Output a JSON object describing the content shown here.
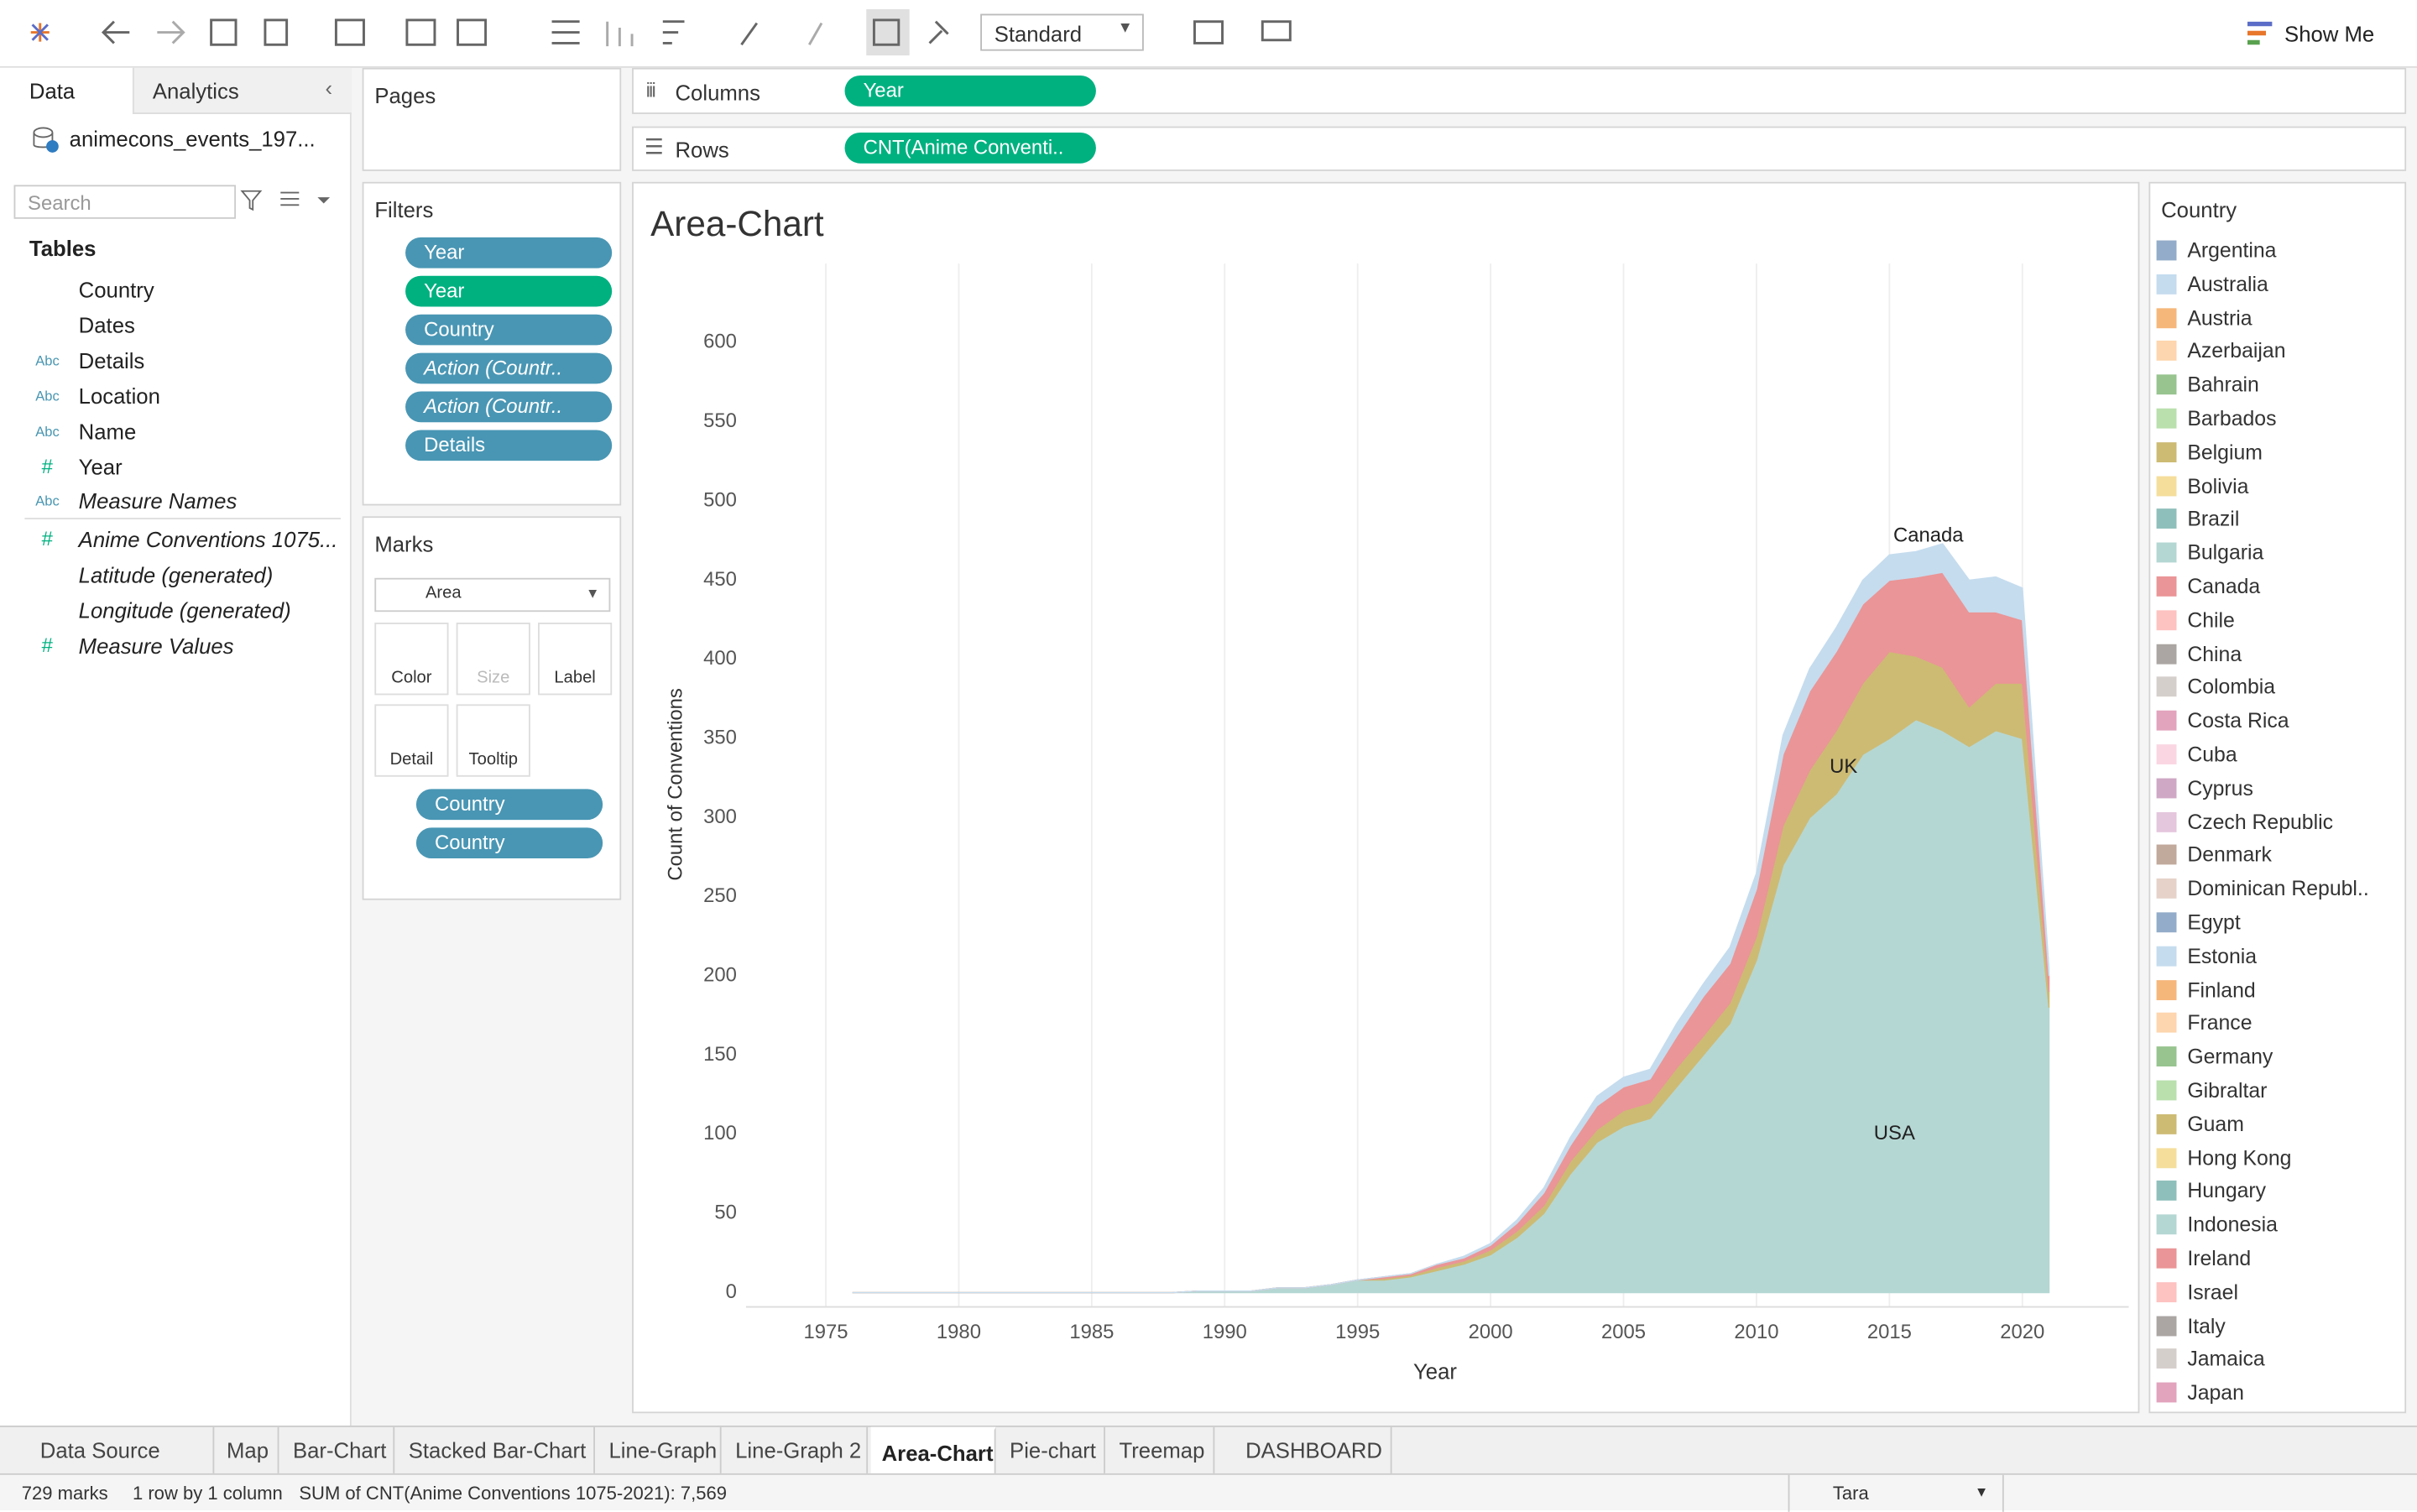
{
  "toolbar": {
    "fit_dropdown": "Standard",
    "show_me": "Show Me"
  },
  "data_pane": {
    "tabs": [
      "Data",
      "Analytics"
    ],
    "datasource": "animecons_events_197...",
    "search_placeholder": "Search",
    "tables_header": "Tables",
    "fields": [
      {
        "icon": "globe",
        "color": "#4996b2",
        "name": "Country"
      },
      {
        "icon": "calendar",
        "color": "#4996b2",
        "name": "Dates"
      },
      {
        "icon": "Abc",
        "color": "#4996b2",
        "name": "Details"
      },
      {
        "icon": "Abc",
        "color": "#4996b2",
        "name": "Location"
      },
      {
        "icon": "Abc",
        "color": "#4996b2",
        "name": "Name"
      },
      {
        "icon": "#",
        "color": "#00b180",
        "name": "Year"
      },
      {
        "icon": "Abc",
        "color": "#4996b2",
        "name": "Measure Names",
        "italic": true
      },
      {
        "icon": "#",
        "color": "#00b180",
        "name": "Anime Conventions 1075...",
        "italic": true
      },
      {
        "icon": "globe",
        "color": "#00b180",
        "name": "Latitude (generated)",
        "italic": true
      },
      {
        "icon": "globe",
        "color": "#00b180",
        "name": "Longitude (generated)",
        "italic": true
      },
      {
        "icon": "#",
        "color": "#00b180",
        "name": "Measure Values",
        "italic": true
      }
    ]
  },
  "pages_shelf": "Pages",
  "columns_shelf": {
    "label": "Columns",
    "pill": "Year"
  },
  "rows_shelf": {
    "label": "Rows",
    "pill": "CNT(Anime Conventi.."
  },
  "filters": {
    "title": "Filters",
    "pills": [
      {
        "label": "Year",
        "color": "#4996b4"
      },
      {
        "label": "Year",
        "color": "#00b180"
      },
      {
        "label": "Country",
        "color": "#4996b4"
      },
      {
        "label": "Action (Countr..",
        "color": "#4996b4",
        "italic": true
      },
      {
        "label": "Action (Countr..",
        "color": "#4996b4",
        "italic": true
      },
      {
        "label": "Details",
        "color": "#4996b4"
      }
    ]
  },
  "marks": {
    "title": "Marks",
    "mark_type": "Area",
    "buttons": [
      "Color",
      "Size",
      "Label",
      "Detail",
      "Tooltip"
    ],
    "pills": [
      "Country",
      "Country"
    ]
  },
  "chart_data": {
    "type": "area",
    "title": "Area-Chart",
    "x_label": "Year",
    "y_label": "Count of Conventions",
    "x": [
      1976,
      1977,
      1978,
      1979,
      1980,
      1981,
      1982,
      1983,
      1984,
      1985,
      1986,
      1987,
      1988,
      1989,
      1990,
      1991,
      1992,
      1993,
      1994,
      1995,
      1996,
      1997,
      1998,
      1999,
      2000,
      2001,
      2002,
      2003,
      2004,
      2005,
      2006,
      2007,
      2008,
      2009,
      2010,
      2011,
      2012,
      2013,
      2014,
      2015,
      2016,
      2017,
      2018,
      2019,
      2020,
      2021
    ],
    "xlim": [
      1972,
      2024
    ],
    "xticks": [
      1975,
      1980,
      1985,
      1990,
      1995,
      2000,
      2005,
      2010,
      2015,
      2020
    ],
    "ylim": [
      -9,
      650
    ],
    "yticks": [
      0,
      50,
      100,
      150,
      200,
      250,
      300,
      350,
      400,
      450,
      500,
      550,
      600
    ],
    "grid": "x",
    "series": [
      {
        "name": "USA",
        "color": "#b5d7d3",
        "values": [
          0,
          0,
          0,
          0,
          0,
          0,
          0,
          0,
          0,
          0,
          0,
          0,
          0,
          1,
          1,
          1,
          3,
          3,
          5,
          8,
          8,
          10,
          14,
          18,
          24,
          35,
          50,
          75,
          95,
          105,
          110,
          130,
          150,
          170,
          210,
          270,
          300,
          315,
          340,
          350,
          362,
          355,
          345,
          355,
          350,
          180
        ]
      },
      {
        "name": "UK",
        "color": "#cdbb74",
        "values": [
          0,
          0,
          0,
          0,
          0,
          0,
          0,
          0,
          0,
          0,
          0,
          0,
          0,
          0,
          0,
          0,
          0,
          0,
          0,
          0,
          1,
          1,
          2,
          2,
          3,
          4,
          5,
          8,
          8,
          10,
          10,
          12,
          12,
          13,
          15,
          25,
          30,
          40,
          45,
          55,
          40,
          40,
          25,
          30,
          35,
          10
        ]
      },
      {
        "name": "Canada",
        "color": "#ea9597",
        "values": [
          0,
          0,
          0,
          0,
          0,
          0,
          0,
          0,
          0,
          0,
          0,
          0,
          0,
          0,
          0,
          0,
          0,
          0,
          0,
          0,
          1,
          1,
          2,
          2,
          3,
          5,
          8,
          10,
          15,
          15,
          15,
          20,
          25,
          25,
          30,
          45,
          50,
          50,
          50,
          45,
          50,
          60,
          60,
          45,
          40,
          10
        ]
      },
      {
        "name": "Australia",
        "color": "#c5dcee",
        "values": [
          0,
          0,
          0,
          0,
          0,
          0,
          0,
          0,
          0,
          0,
          0,
          0,
          0,
          0,
          0,
          0,
          0,
          0,
          0,
          0,
          0,
          0,
          0,
          1,
          1,
          2,
          3,
          5,
          6,
          6,
          6,
          8,
          8,
          10,
          10,
          12,
          14,
          15,
          15,
          16,
          16,
          18,
          20,
          22,
          20,
          5
        ]
      }
    ],
    "legend": {
      "title": "Country",
      "items": [
        {
          "name": "Argentina",
          "color": "#93acc9"
        },
        {
          "name": "Australia",
          "color": "#c5dcee"
        },
        {
          "name": "Austria",
          "color": "#f6b77a"
        },
        {
          "name": "Azerbaijan",
          "color": "#fdd5ae"
        },
        {
          "name": "Bahrain",
          "color": "#97c48f"
        },
        {
          "name": "Barbados",
          "color": "#b9e0ad"
        },
        {
          "name": "Belgium",
          "color": "#cdbb74"
        },
        {
          "name": "Bolivia",
          "color": "#f5de9c"
        },
        {
          "name": "Brazil",
          "color": "#8fbfbb"
        },
        {
          "name": "Bulgaria",
          "color": "#b5d7d3"
        },
        {
          "name": "Canada",
          "color": "#ea9597"
        },
        {
          "name": "Chile",
          "color": "#fdc3c1"
        },
        {
          "name": "China",
          "color": "#aba5a3"
        },
        {
          "name": "Colombia",
          "color": "#d5cfcc"
        },
        {
          "name": "Costa Rica",
          "color": "#e2a3bd"
        },
        {
          "name": "Cuba",
          "color": "#fad6e2"
        },
        {
          "name": "Cyprus",
          "color": "#cfa8c5"
        },
        {
          "name": "Czech Republic",
          "color": "#e4c6dd"
        },
        {
          "name": "Denmark",
          "color": "#c1a99c"
        },
        {
          "name": "Dominican Republ..",
          "color": "#e6d2c9"
        },
        {
          "name": "Egypt",
          "color": "#93acc9"
        },
        {
          "name": "Estonia",
          "color": "#c5dcee"
        },
        {
          "name": "Finland",
          "color": "#f6b77a"
        },
        {
          "name": "France",
          "color": "#fdd5ae"
        },
        {
          "name": "Germany",
          "color": "#97c48f"
        },
        {
          "name": "Gibraltar",
          "color": "#b9e0ad"
        },
        {
          "name": "Guam",
          "color": "#cdbb74"
        },
        {
          "name": "Hong Kong",
          "color": "#f5de9c"
        },
        {
          "name": "Hungary",
          "color": "#8fbfbb"
        },
        {
          "name": "Indonesia",
          "color": "#b5d7d3"
        },
        {
          "name": "Ireland",
          "color": "#ea9597"
        },
        {
          "name": "Israel",
          "color": "#fdc3c1"
        },
        {
          "name": "Italy",
          "color": "#aba5a3"
        },
        {
          "name": "Jamaica",
          "color": "#d5cfcc"
        },
        {
          "name": "Japan",
          "color": "#e2a3bd"
        }
      ]
    }
  },
  "sheet_tabs": {
    "items": [
      "Data Source",
      "Map",
      "Bar-Chart",
      "Stacked Bar-Chart",
      "Line-Graph",
      "Line-Graph 2",
      "Area-Chart",
      "Pie-chart",
      "Treemap",
      "DASHBOARD"
    ],
    "active": 6
  },
  "status_bar": {
    "items": [
      "729 marks",
      "1 row by 1 column",
      "SUM of CNT(Anime Conventions 1075-2021): 7,569"
    ],
    "user": "Tara"
  }
}
